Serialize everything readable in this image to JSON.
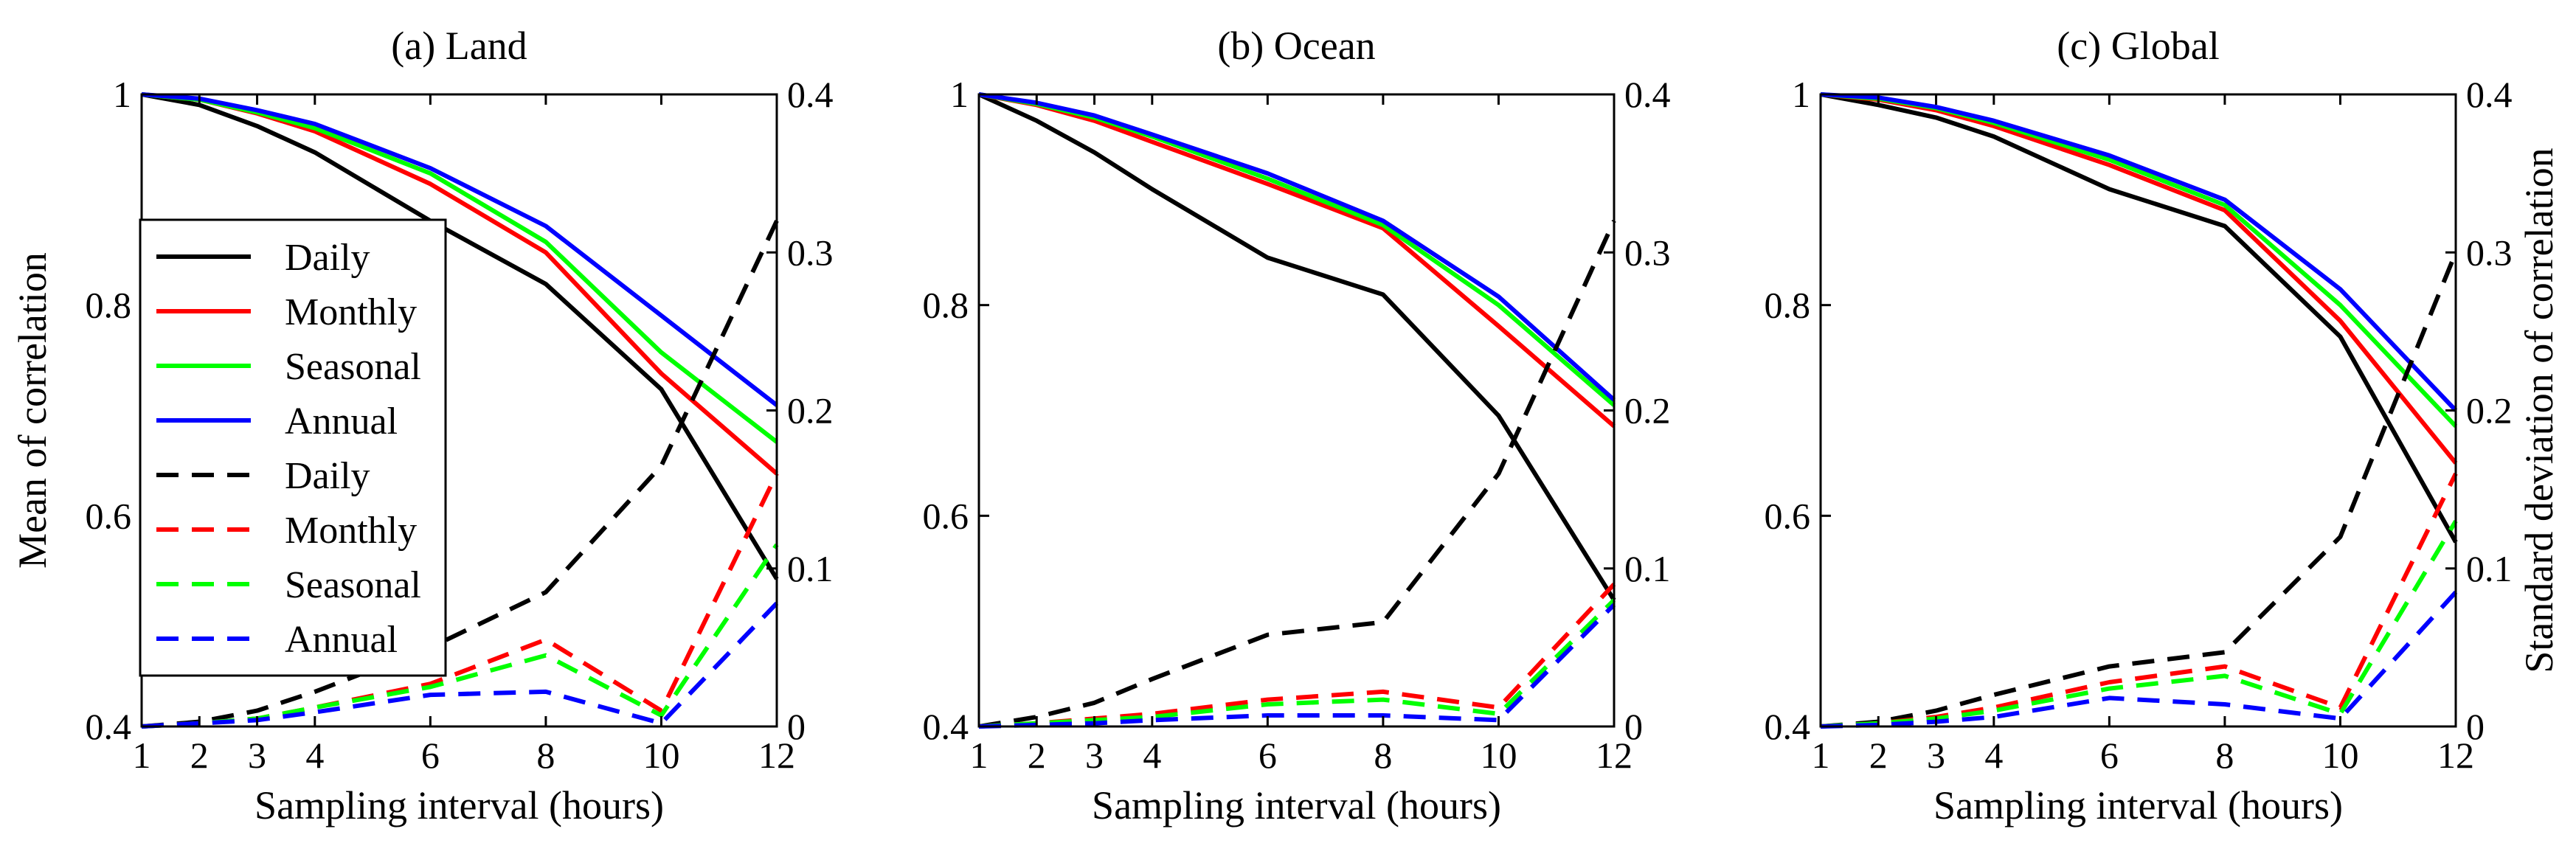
{
  "legend": {
    "entries": [
      {
        "label": "Daily",
        "color": "#000000",
        "style": "solid"
      },
      {
        "label": "Monthly",
        "color": "#ff0000",
        "style": "solid"
      },
      {
        "label": "Seasonal",
        "color": "#00ff00",
        "style": "solid"
      },
      {
        "label": "Annual",
        "color": "#0000ff",
        "style": "solid"
      },
      {
        "label": "Daily",
        "color": "#000000",
        "style": "dashed"
      },
      {
        "label": "Monthly",
        "color": "#ff0000",
        "style": "dashed"
      },
      {
        "label": "Seasonal",
        "color": "#00ff00",
        "style": "dashed"
      },
      {
        "label": "Annual",
        "color": "#0000ff",
        "style": "dashed"
      }
    ]
  },
  "chart_data": [
    {
      "type": "line",
      "title": "(a) Land",
      "xlabel": "Sampling interval (hours)",
      "ylabel": "Mean of correlation",
      "y2label": "",
      "x": [
        1,
        2,
        3,
        4,
        6,
        8,
        10,
        12
      ],
      "xticks": [
        1,
        2,
        3,
        4,
        6,
        8,
        10,
        12
      ],
      "xlim": [
        1,
        12
      ],
      "ylim": [
        0.4,
        1.0
      ],
      "yticks": [
        0.4,
        0.6,
        0.8,
        1.0
      ],
      "yticklabels": [
        "0.4",
        "0.6",
        "0.8",
        "1"
      ],
      "y2lim": [
        0,
        0.4
      ],
      "y2ticks": [
        0,
        0.1,
        0.2,
        0.3,
        0.4
      ],
      "y2ticklabels": [
        "0",
        "0.1",
        "0.2",
        "0.3",
        "0.4"
      ],
      "series": [
        {
          "name": "Daily",
          "axis": "left",
          "color": "#000000",
          "style": "solid",
          "values": [
            1.0,
            0.99,
            0.97,
            0.945,
            0.88,
            0.82,
            0.72,
            0.54
          ]
        },
        {
          "name": "Monthly",
          "axis": "left",
          "color": "#ff0000",
          "style": "solid",
          "values": [
            1.0,
            0.995,
            0.982,
            0.965,
            0.915,
            0.85,
            0.735,
            0.64
          ]
        },
        {
          "name": "Seasonal",
          "axis": "left",
          "color": "#00ff00",
          "style": "solid",
          "values": [
            1.0,
            0.995,
            0.983,
            0.968,
            0.925,
            0.86,
            0.755,
            0.67
          ]
        },
        {
          "name": "Annual",
          "axis": "left",
          "color": "#0000ff",
          "style": "solid",
          "values": [
            1.0,
            0.996,
            0.985,
            0.972,
            0.93,
            0.875,
            0.79,
            0.705
          ]
        },
        {
          "name": "Daily",
          "axis": "right",
          "color": "#000000",
          "style": "dashed",
          "values": [
            0.0,
            0.003,
            0.01,
            0.022,
            0.05,
            0.085,
            0.165,
            0.32
          ]
        },
        {
          "name": "Monthly",
          "axis": "right",
          "color": "#ff0000",
          "style": "dashed",
          "values": [
            0.0,
            0.002,
            0.005,
            0.012,
            0.027,
            0.055,
            0.01,
            0.16
          ]
        },
        {
          "name": "Seasonal",
          "axis": "right",
          "color": "#00ff00",
          "style": "dashed",
          "values": [
            0.0,
            0.002,
            0.005,
            0.012,
            0.025,
            0.045,
            0.007,
            0.115
          ]
        },
        {
          "name": "Annual",
          "axis": "right",
          "color": "#0000ff",
          "style": "dashed",
          "values": [
            0.0,
            0.002,
            0.004,
            0.009,
            0.02,
            0.022,
            0.002,
            0.078
          ]
        }
      ]
    },
    {
      "type": "line",
      "title": "(b) Ocean",
      "xlabel": "Sampling interval (hours)",
      "ylabel": "",
      "y2label": "",
      "x": [
        1,
        2,
        3,
        4,
        6,
        8,
        10,
        12
      ],
      "xticks": [
        1,
        2,
        3,
        4,
        6,
        8,
        10,
        12
      ],
      "xlim": [
        1,
        12
      ],
      "ylim": [
        0.4,
        1.0
      ],
      "yticks": [
        0.4,
        0.6,
        0.8,
        1.0
      ],
      "yticklabels": [
        "0.4",
        "0.6",
        "0.8",
        "1"
      ],
      "y2lim": [
        0,
        0.4
      ],
      "y2ticks": [
        0,
        0.1,
        0.2,
        0.3,
        0.4
      ],
      "y2ticklabels": [
        "0",
        "0.1",
        "0.2",
        "0.3",
        "0.4"
      ],
      "series": [
        {
          "name": "Daily",
          "axis": "left",
          "color": "#000000",
          "style": "solid",
          "values": [
            1.0,
            0.975,
            0.945,
            0.91,
            0.845,
            0.81,
            0.695,
            0.52
          ]
        },
        {
          "name": "Monthly",
          "axis": "left",
          "color": "#ff0000",
          "style": "solid",
          "values": [
            1.0,
            0.99,
            0.975,
            0.955,
            0.915,
            0.873,
            0.78,
            0.685
          ]
        },
        {
          "name": "Seasonal",
          "axis": "left",
          "color": "#00ff00",
          "style": "solid",
          "values": [
            1.0,
            0.991,
            0.978,
            0.96,
            0.92,
            0.876,
            0.8,
            0.705
          ]
        },
        {
          "name": "Annual",
          "axis": "left",
          "color": "#0000ff",
          "style": "solid",
          "values": [
            1.0,
            0.992,
            0.98,
            0.962,
            0.925,
            0.88,
            0.808,
            0.71
          ]
        },
        {
          "name": "Daily",
          "axis": "right",
          "color": "#000000",
          "style": "dashed",
          "values": [
            0.0,
            0.006,
            0.015,
            0.03,
            0.058,
            0.066,
            0.16,
            0.32
          ]
        },
        {
          "name": "Monthly",
          "axis": "right",
          "color": "#ff0000",
          "style": "dashed",
          "values": [
            0.0,
            0.002,
            0.005,
            0.008,
            0.017,
            0.022,
            0.012,
            0.09
          ]
        },
        {
          "name": "Seasonal",
          "axis": "right",
          "color": "#00ff00",
          "style": "dashed",
          "values": [
            0.0,
            0.002,
            0.004,
            0.006,
            0.014,
            0.017,
            0.008,
            0.08
          ]
        },
        {
          "name": "Annual",
          "axis": "right",
          "color": "#0000ff",
          "style": "dashed",
          "values": [
            0.0,
            0.001,
            0.002,
            0.004,
            0.007,
            0.007,
            0.004,
            0.077
          ]
        }
      ]
    },
    {
      "type": "line",
      "title": "(c) Global",
      "xlabel": "Sampling interval (hours)",
      "ylabel": "",
      "y2label": "Standard deviation of correlation",
      "x": [
        1,
        2,
        3,
        4,
        6,
        8,
        10,
        12
      ],
      "xticks": [
        1,
        2,
        3,
        4,
        6,
        8,
        10,
        12
      ],
      "xlim": [
        1,
        12
      ],
      "ylim": [
        0.4,
        1.0
      ],
      "yticks": [
        0.4,
        0.6,
        0.8,
        1.0
      ],
      "yticklabels": [
        "0.4",
        "0.6",
        "0.8",
        "1"
      ],
      "y2lim": [
        0,
        0.4
      ],
      "y2ticks": [
        0,
        0.1,
        0.2,
        0.3,
        0.4
      ],
      "y2ticklabels": [
        "0",
        "0.1",
        "0.2",
        "0.3",
        "0.4"
      ],
      "series": [
        {
          "name": "Daily",
          "axis": "left",
          "color": "#000000",
          "style": "solid",
          "values": [
            1.0,
            0.99,
            0.978,
            0.96,
            0.91,
            0.875,
            0.77,
            0.575
          ]
        },
        {
          "name": "Monthly",
          "axis": "left",
          "color": "#ff0000",
          "style": "solid",
          "values": [
            1.0,
            0.995,
            0.985,
            0.97,
            0.933,
            0.89,
            0.785,
            0.65
          ]
        },
        {
          "name": "Seasonal",
          "axis": "left",
          "color": "#00ff00",
          "style": "solid",
          "values": [
            1.0,
            0.996,
            0.987,
            0.973,
            0.938,
            0.895,
            0.8,
            0.685
          ]
        },
        {
          "name": "Annual",
          "axis": "left",
          "color": "#0000ff",
          "style": "solid",
          "values": [
            1.0,
            0.997,
            0.988,
            0.975,
            0.942,
            0.9,
            0.815,
            0.7
          ]
        },
        {
          "name": "Daily",
          "axis": "right",
          "color": "#000000",
          "style": "dashed",
          "values": [
            0.0,
            0.003,
            0.01,
            0.02,
            0.038,
            0.047,
            0.12,
            0.3
          ]
        },
        {
          "name": "Monthly",
          "axis": "right",
          "color": "#ff0000",
          "style": "dashed",
          "values": [
            0.0,
            0.002,
            0.006,
            0.012,
            0.028,
            0.038,
            0.012,
            0.16
          ]
        },
        {
          "name": "Seasonal",
          "axis": "right",
          "color": "#00ff00",
          "style": "dashed",
          "values": [
            0.0,
            0.002,
            0.005,
            0.01,
            0.024,
            0.032,
            0.008,
            0.13
          ]
        },
        {
          "name": "Annual",
          "axis": "right",
          "color": "#0000ff",
          "style": "dashed",
          "values": [
            0.0,
            0.001,
            0.003,
            0.006,
            0.018,
            0.014,
            0.005,
            0.085
          ]
        }
      ]
    }
  ]
}
